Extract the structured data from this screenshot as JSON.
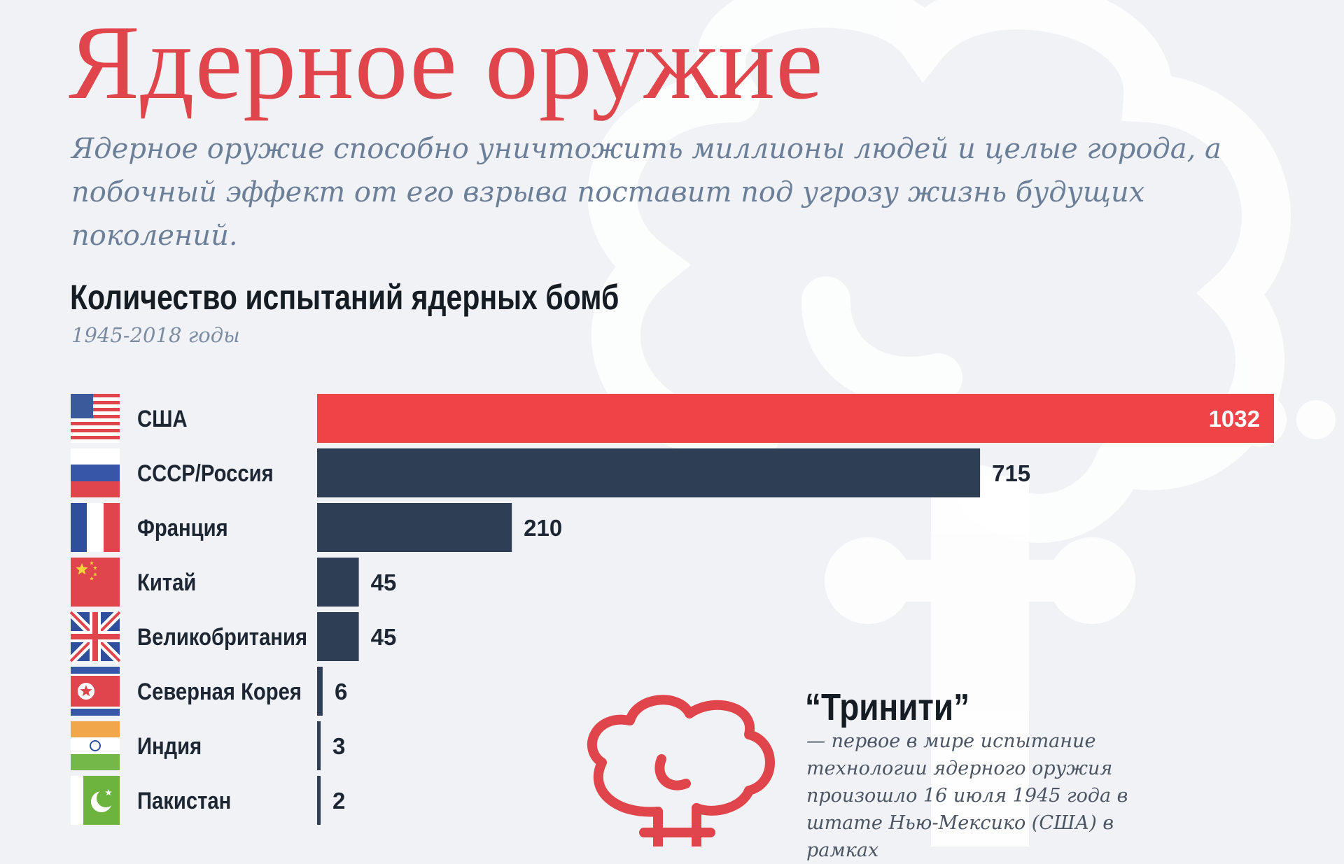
{
  "header": {
    "title": "Ядерное оружие",
    "subtitle": "Ядерное оружие способно уничтожить миллионы людей и целые города, а побочный эффект от его взрыва поставит под угрозу жизнь будущих поколений."
  },
  "chart_data": {
    "type": "bar",
    "orientation": "horizontal",
    "title": "Количество испытаний ядерных бомб",
    "subtitle": "1945-2018 годы",
    "categories": [
      "США",
      "СССР/Россия",
      "Франция",
      "Китай",
      "Великобритания",
      "Северная Корея",
      "Индия",
      "Пакистан"
    ],
    "values": [
      1032,
      715,
      210,
      45,
      45,
      6,
      3,
      2
    ],
    "xlim": [
      0,
      1032
    ],
    "grid": false,
    "legend": "none",
    "colors": {
      "highlight": "#ee4447",
      "default": "#2e3f55",
      "label_inside": "#ffffff",
      "label_outside": "#1d2733"
    },
    "flags": [
      "us-flag-icon",
      "russia-flag-icon",
      "france-flag-icon",
      "china-flag-icon",
      "uk-flag-icon",
      "north-korea-flag-icon",
      "india-flag-icon",
      "pakistan-flag-icon"
    ]
  },
  "fact": {
    "title": "“Тринити”",
    "text": "— первое в мире испытание технологии ядерного оружия произошло 16 июля 1945 года в штате Нью-Мексико (США) в рамках",
    "icon": "mushroom-cloud-icon",
    "icon_color": "#e0454b"
  }
}
